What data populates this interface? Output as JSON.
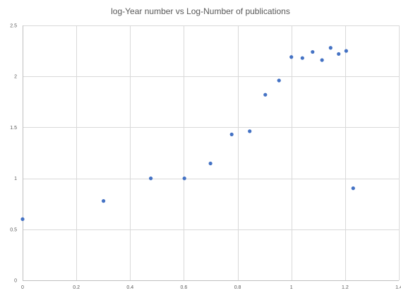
{
  "chart_data": {
    "type": "scatter",
    "title": "log-Year number vs Log-Number of publications",
    "xlabel": "",
    "ylabel": "",
    "xlim": [
      0,
      1.4
    ],
    "ylim": [
      0,
      2.5
    ],
    "x_ticks": [
      0,
      0.2,
      0.4,
      0.6,
      0.8,
      1,
      1.2,
      1.4
    ],
    "x_tick_labels": [
      "0",
      "0.2",
      "0.4",
      "0.6",
      "0.8",
      "1",
      "1.2",
      "1.4"
    ],
    "y_ticks": [
      0,
      0.5,
      1,
      1.5,
      2,
      2.5
    ],
    "y_tick_labels": [
      "0",
      "0.5",
      "1",
      "1.5",
      "2",
      "2.5"
    ],
    "grid": true,
    "series": [
      {
        "marker_color": "#4472c4",
        "points": [
          {
            "x": 0,
            "y": 0.6
          },
          {
            "x": 0.301,
            "y": 0.778
          },
          {
            "x": 0.477,
            "y": 1.0
          },
          {
            "x": 0.602,
            "y": 1.0
          },
          {
            "x": 0.699,
            "y": 1.146
          },
          {
            "x": 0.778,
            "y": 1.431
          },
          {
            "x": 0.845,
            "y": 1.462
          },
          {
            "x": 0.903,
            "y": 1.82
          },
          {
            "x": 0.954,
            "y": 1.96
          },
          {
            "x": 1.0,
            "y": 2.19
          },
          {
            "x": 1.041,
            "y": 2.18
          },
          {
            "x": 1.079,
            "y": 2.24
          },
          {
            "x": 1.114,
            "y": 2.16
          },
          {
            "x": 1.146,
            "y": 2.28
          },
          {
            "x": 1.176,
            "y": 2.22
          },
          {
            "x": 1.204,
            "y": 2.25
          },
          {
            "x": 1.23,
            "y": 0.903
          }
        ]
      }
    ]
  }
}
